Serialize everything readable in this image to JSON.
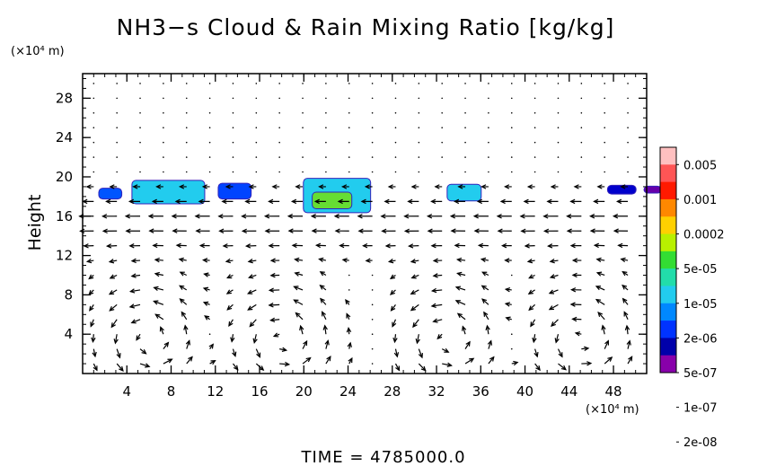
{
  "chart_data": {
    "type": "heatmap",
    "title": "NH3−s Cloud & Rain Mixing Ratio [kg/kg]",
    "xlabel": "",
    "x_unit": "(×10⁴ m)",
    "ylabel": "Height",
    "y_unit": "(×10⁴ m)",
    "xlim": [
      0,
      51
    ],
    "ylim": [
      0,
      30.5
    ],
    "x_ticks": [
      "4",
      "8",
      "12",
      "16",
      "20",
      "24",
      "28",
      "32",
      "36",
      "40",
      "44",
      "48"
    ],
    "y_ticks": [
      "4",
      "8",
      "12",
      "16",
      "20",
      "24",
      "28"
    ],
    "x_tick_values": [
      4,
      8,
      12,
      16,
      20,
      24,
      28,
      32,
      36,
      40,
      44,
      48
    ],
    "y_tick_values": [
      4,
      8,
      12,
      16,
      20,
      24,
      28
    ],
    "colorbar": {
      "labels": [
        "0.005",
        "0.001",
        "0.0002",
        "5e-05",
        "1e-05",
        "2e-06",
        "5e-07",
        "1e-07",
        "2e-08"
      ],
      "colors": [
        "#ffc0c0",
        "#ff5555",
        "#ff1a00",
        "#ff8800",
        "#ffd000",
        "#b8f000",
        "#33dd33",
        "#22ddaa",
        "#22ccee",
        "#0088ff",
        "#0033ff",
        "#0000aa",
        "#8800aa"
      ]
    },
    "cloud_regions": [
      {
        "x": [
          1.5,
          3.5
        ],
        "y": [
          17.8,
          18.8
        ],
        "color": "#0055ff"
      },
      {
        "x": [
          4.5,
          11.0
        ],
        "y": [
          17.3,
          19.6
        ],
        "color": "#22ccee"
      },
      {
        "x": [
          12.3,
          15.2
        ],
        "y": [
          17.8,
          19.3
        ],
        "color": "#0044ff"
      },
      {
        "x": [
          20.0,
          26.0
        ],
        "y": [
          16.4,
          19.8
        ],
        "color": "#22ccee"
      },
      {
        "x": [
          20.8,
          24.3
        ],
        "y": [
          16.8,
          18.4
        ],
        "color": "#66dd33"
      },
      {
        "x": [
          33.0,
          36.0
        ],
        "y": [
          17.6,
          19.2
        ],
        "color": "#22ccee"
      },
      {
        "x": [
          47.5,
          50.0
        ],
        "y": [
          18.3,
          19.1
        ],
        "color": "#0000cc"
      },
      {
        "x": [
          50.8,
          52.3
        ],
        "y": [
          18.4,
          19.0
        ],
        "color": "#6600aa"
      }
    ],
    "vector_field": "wind arrows on grid, circulation cells centered near x = 6, 18, 33, 45 at height ~3",
    "time_label": "TIME  =  4785000.0"
  }
}
